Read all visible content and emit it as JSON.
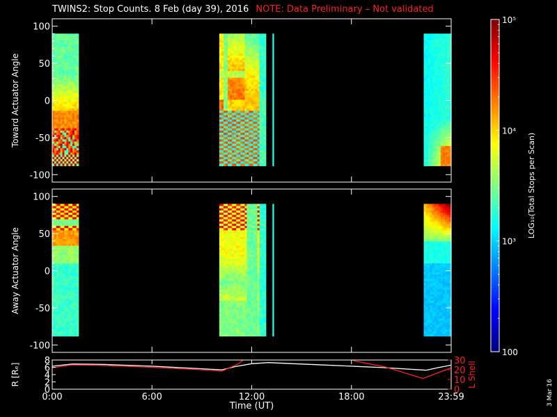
{
  "title": {
    "main": "TWINS2: Stop Counts.  8 Feb (day  39), 2016",
    "note": "NOTE: Data Preliminary – Not validated"
  },
  "date_stamp": "3 Mar 16",
  "colors": {
    "background": "#000000",
    "axes": "#ffffff",
    "note": "#ff2020",
    "r_line": "#ffffff",
    "l_shell_line": "#ff2020"
  },
  "chart_data": [
    {
      "type": "heatmap",
      "name": "toward",
      "ylabel": "Toward Actuator Angle",
      "xlim": [
        0,
        24
      ],
      "ylim": [
        -110,
        110
      ],
      "yticks": [
        100,
        50,
        0,
        -50,
        -100
      ],
      "angle_range": [
        -88,
        90
      ],
      "blocks": [
        {
          "start": 0.0,
          "end": 1.58,
          "pattern": "toward_a"
        },
        {
          "start": 10.05,
          "end": 12.85,
          "pattern": "toward_b"
        },
        {
          "start": 13.25,
          "end": 13.32,
          "pattern": "thin"
        },
        {
          "start": 22.35,
          "end": 24.0,
          "pattern": "toward_c"
        }
      ]
    },
    {
      "type": "heatmap",
      "name": "away",
      "ylabel": "Away Actuator Angle",
      "xlim": [
        0,
        24
      ],
      "ylim": [
        -110,
        110
      ],
      "yticks": [
        100,
        50,
        0,
        -50,
        -100
      ],
      "angle_range": [
        -88,
        90
      ],
      "blocks": [
        {
          "start": 0.0,
          "end": 1.58,
          "pattern": "away_a"
        },
        {
          "start": 10.05,
          "end": 12.85,
          "pattern": "away_b"
        },
        {
          "start": 13.25,
          "end": 13.32,
          "pattern": "thin"
        },
        {
          "start": 22.35,
          "end": 24.0,
          "pattern": "away_c"
        }
      ]
    },
    {
      "type": "line",
      "name": "orbit",
      "ylabel": "R [Rₑ]",
      "y2label": "L Shell",
      "xlabel": "Time (UT)",
      "xlim": [
        0,
        24
      ],
      "xticks": [
        "0:00",
        "6:00",
        "12:00",
        "18:00",
        "23:59"
      ],
      "xtick_values": [
        0,
        6,
        12,
        18,
        24
      ],
      "ylim": [
        0,
        8
      ],
      "yticks": [
        0,
        2,
        4,
        6,
        8
      ],
      "y2lim": [
        0,
        30
      ],
      "y2ticks": [
        0,
        10,
        20,
        30
      ],
      "series": [
        {
          "name": "R",
          "axis": "left",
          "x": [
            0,
            1.2,
            3,
            6,
            9,
            10.2,
            11,
            12,
            13,
            14.5,
            16,
            18,
            20,
            22.5,
            23.2,
            24
          ],
          "y": [
            6.3,
            6.9,
            6.8,
            6.3,
            5.6,
            5.3,
            6.2,
            7.0,
            7.3,
            7.0,
            6.7,
            6.3,
            5.9,
            5.2,
            5.9,
            6.6
          ]
        },
        {
          "name": "L Shell",
          "axis": "right",
          "x": [
            0,
            1.2,
            3,
            6,
            9,
            10.2,
            11.2,
            11.55,
            null,
            17.9,
            18.2,
            20,
            22.3,
            24
          ],
          "y": [
            22,
            25,
            24.5,
            22.5,
            20,
            18.5,
            26,
            31,
            null,
            31,
            29,
            23,
            11,
            22
          ]
        }
      ]
    }
  ],
  "colorbar": {
    "label": "LOG₁₀(Total Stops per Scan)",
    "ticks": [
      "10⁵",
      "10⁴",
      "10³",
      "100"
    ],
    "tick_values": [
      5,
      4,
      3,
      2
    ],
    "range": [
      2,
      5
    ]
  }
}
